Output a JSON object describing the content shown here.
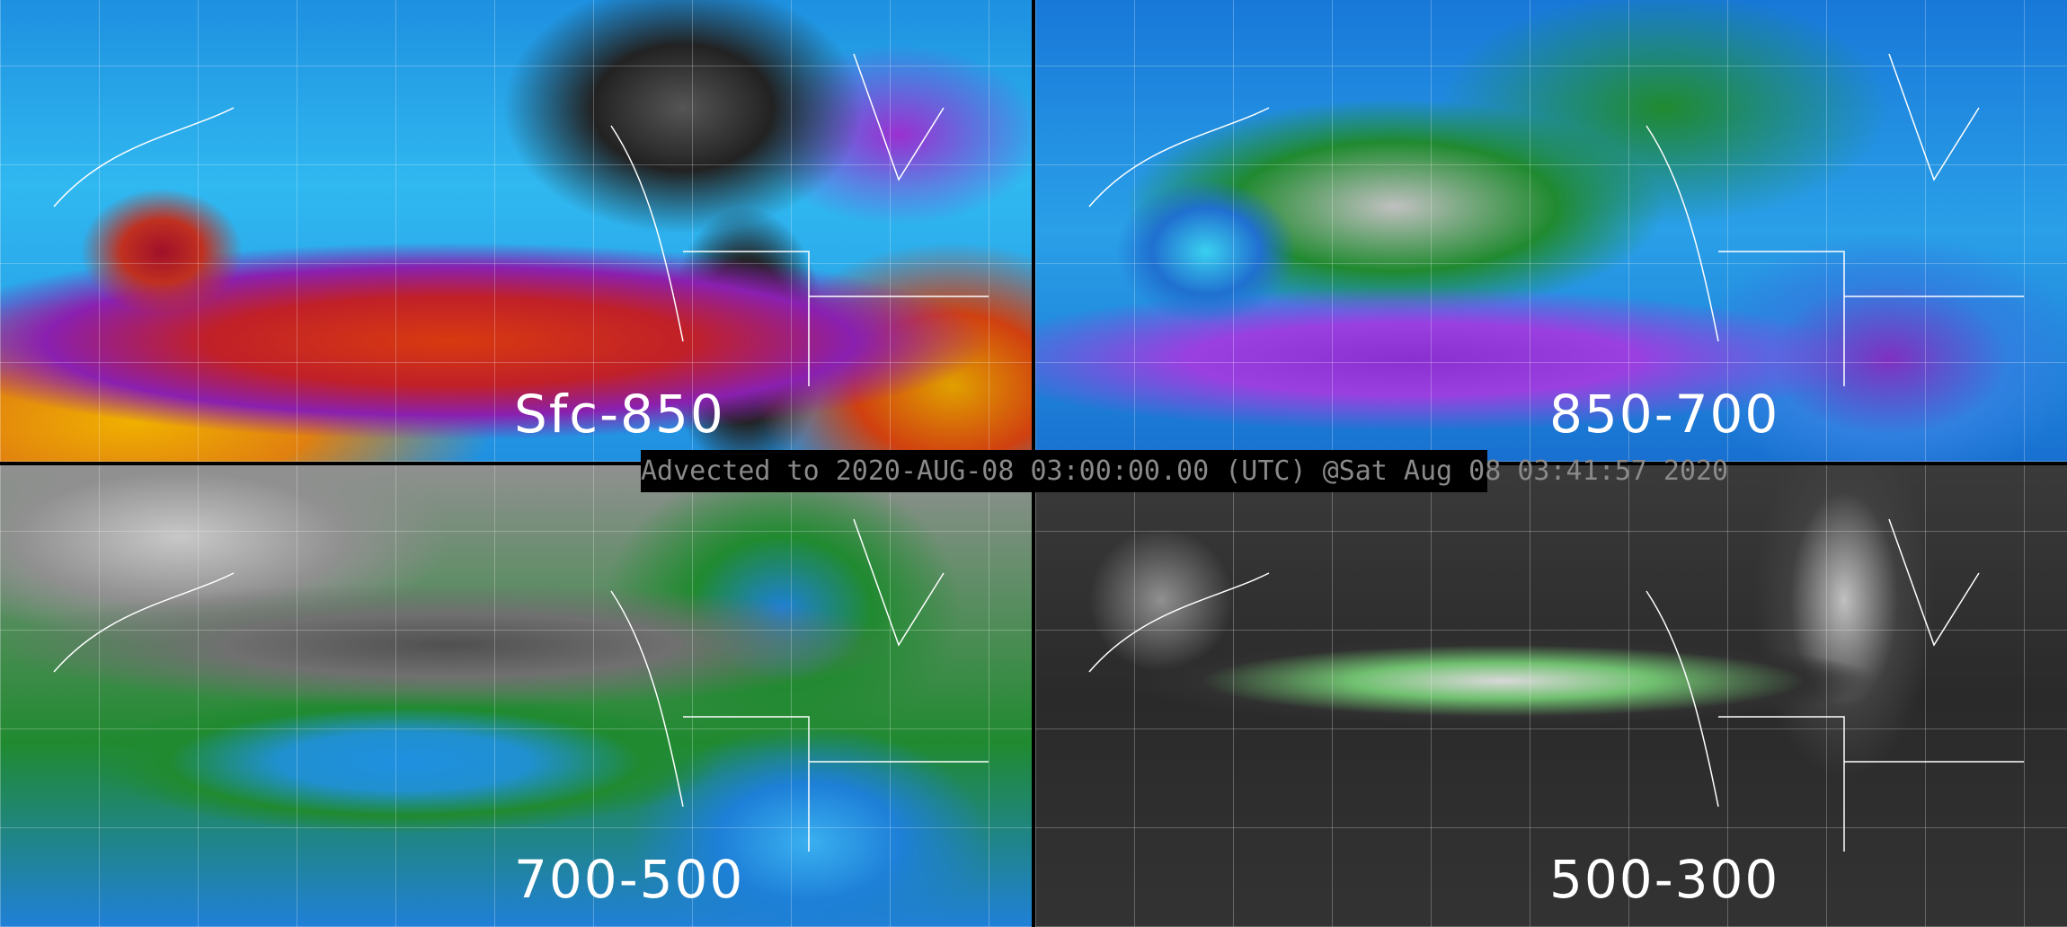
{
  "panels": [
    {
      "label": "Sfc-850"
    },
    {
      "label": "850-700"
    },
    {
      "label": "700-500"
    },
    {
      "label": "500-300"
    }
  ],
  "timestamp": "Advected to 2020-AUG-08 03:00:00.00 (UTC) @Sat Aug 08 03:41:57 2020",
  "colors": {
    "background": "#000000",
    "timestamp_text": "#8a8a8a",
    "panel_label": "#ffffff",
    "coastlines": "#ffffff"
  }
}
